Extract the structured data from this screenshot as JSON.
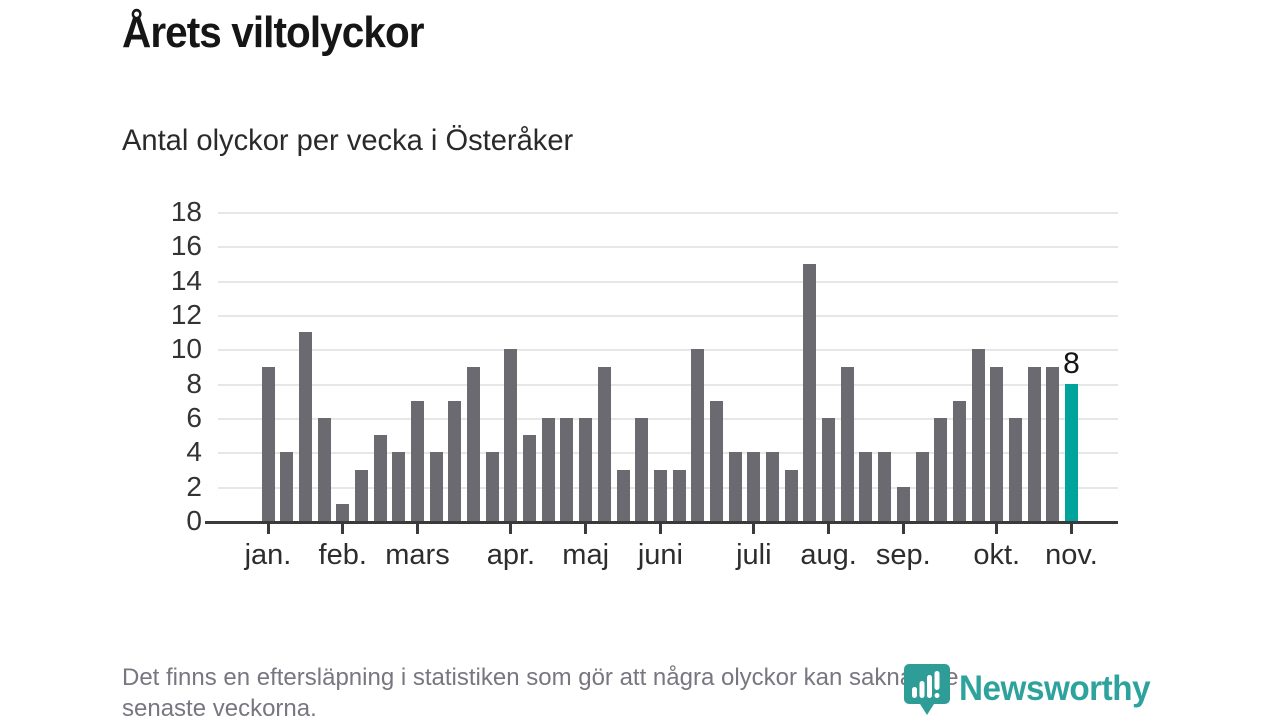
{
  "header": {
    "title": "Årets viltolyckor",
    "subtitle": "Antal olyckor per vecka i Österåker"
  },
  "chart_data": {
    "type": "bar",
    "title": "Årets viltolyckor",
    "subtitle": "Antal olyckor per vecka i Österåker",
    "x_unit": "vecka",
    "values": [
      9,
      4,
      11,
      6,
      1,
      3,
      5,
      4,
      7,
      4,
      7,
      9,
      4,
      10,
      5,
      6,
      6,
      6,
      9,
      3,
      6,
      3,
      3,
      10,
      7,
      4,
      4,
      4,
      3,
      15,
      6,
      9,
      4,
      4,
      2,
      4,
      6,
      7,
      10,
      9,
      6,
      9,
      9,
      8
    ],
    "months": [
      {
        "label": "jan.",
        "week": 0
      },
      {
        "label": "feb.",
        "week": 4
      },
      {
        "label": "mars",
        "week": 8
      },
      {
        "label": "apr.",
        "week": 13
      },
      {
        "label": "maj",
        "week": 17
      },
      {
        "label": "juni",
        "week": 21
      },
      {
        "label": "juli",
        "week": 26
      },
      {
        "label": "aug.",
        "week": 30
      },
      {
        "label": "sep.",
        "week": 34
      },
      {
        "label": "okt.",
        "week": 39
      },
      {
        "label": "nov.",
        "week": 43
      }
    ],
    "yticks": [
      0,
      2,
      4,
      6,
      8,
      10,
      12,
      14,
      16,
      18
    ],
    "ylim": [
      0,
      18
    ],
    "grid": true,
    "legend": "none",
    "highlight_index": 43,
    "highlight_value_label": "8",
    "bar_color": "#6b6a70",
    "highlight_color": "#00a49d"
  },
  "footer": {
    "lines": [
      "Det finns en eftersläpning i statistiken som gör att några olyckor kan saknas de",
      "senaste veckorna."
    ]
  },
  "logo": {
    "text": "Newsworthy",
    "color": "#2ea39d"
  }
}
